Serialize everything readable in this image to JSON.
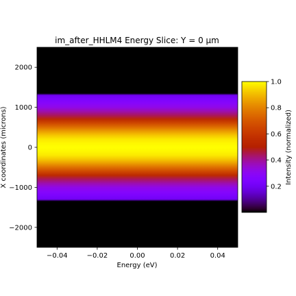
{
  "chart_data": {
    "type": "heatmap",
    "title": "im_after_HHLM4 Energy Slice: Y = 0 μm",
    "xlabel": "Energy (eV)",
    "ylabel": "X coordinates (microns)",
    "xlim": [
      -0.05,
      0.05
    ],
    "ylim": [
      -2500,
      2500
    ],
    "x_ticks": [
      -0.04,
      -0.02,
      0.0,
      0.02,
      0.04
    ],
    "x_tick_labels": [
      "−0.04",
      "−0.02",
      "0.00",
      "0.02",
      "0.04"
    ],
    "y_ticks": [
      -2000,
      -1000,
      0,
      1000,
      2000
    ],
    "y_tick_labels": [
      "−2000",
      "−1000",
      "0",
      "1000",
      "2000"
    ],
    "intensity_profile": {
      "x_um": [
        -2500,
        -1350,
        -1300,
        -1200,
        -1100,
        -1000,
        -900,
        -800,
        -700,
        -600,
        -500,
        -400,
        -300,
        -200,
        -100,
        0,
        100,
        200,
        300,
        400,
        500,
        600,
        700,
        800,
        900,
        1000,
        1100,
        1200,
        1300,
        1350,
        2500
      ],
      "intensity": [
        0.0,
        0.0,
        0.2,
        0.24,
        0.28,
        0.32,
        0.38,
        0.44,
        0.55,
        0.66,
        0.76,
        0.85,
        0.92,
        0.97,
        0.99,
        1.0,
        0.99,
        0.97,
        0.92,
        0.85,
        0.76,
        0.66,
        0.55,
        0.44,
        0.38,
        0.32,
        0.28,
        0.24,
        0.2,
        0.0,
        0.0
      ]
    },
    "colorbar": {
      "label": "Intensity (normalized)",
      "range": [
        0.0,
        1.0
      ],
      "ticks": [
        0.2,
        0.4,
        0.6,
        0.8,
        1.0
      ],
      "tick_labels": [
        "0.2",
        "0.4",
        "0.6",
        "0.8",
        "1.0"
      ],
      "colormap": "gnuplot"
    },
    "grid": false
  },
  "colors": {
    "background": "#000000",
    "axis": "#000000"
  }
}
